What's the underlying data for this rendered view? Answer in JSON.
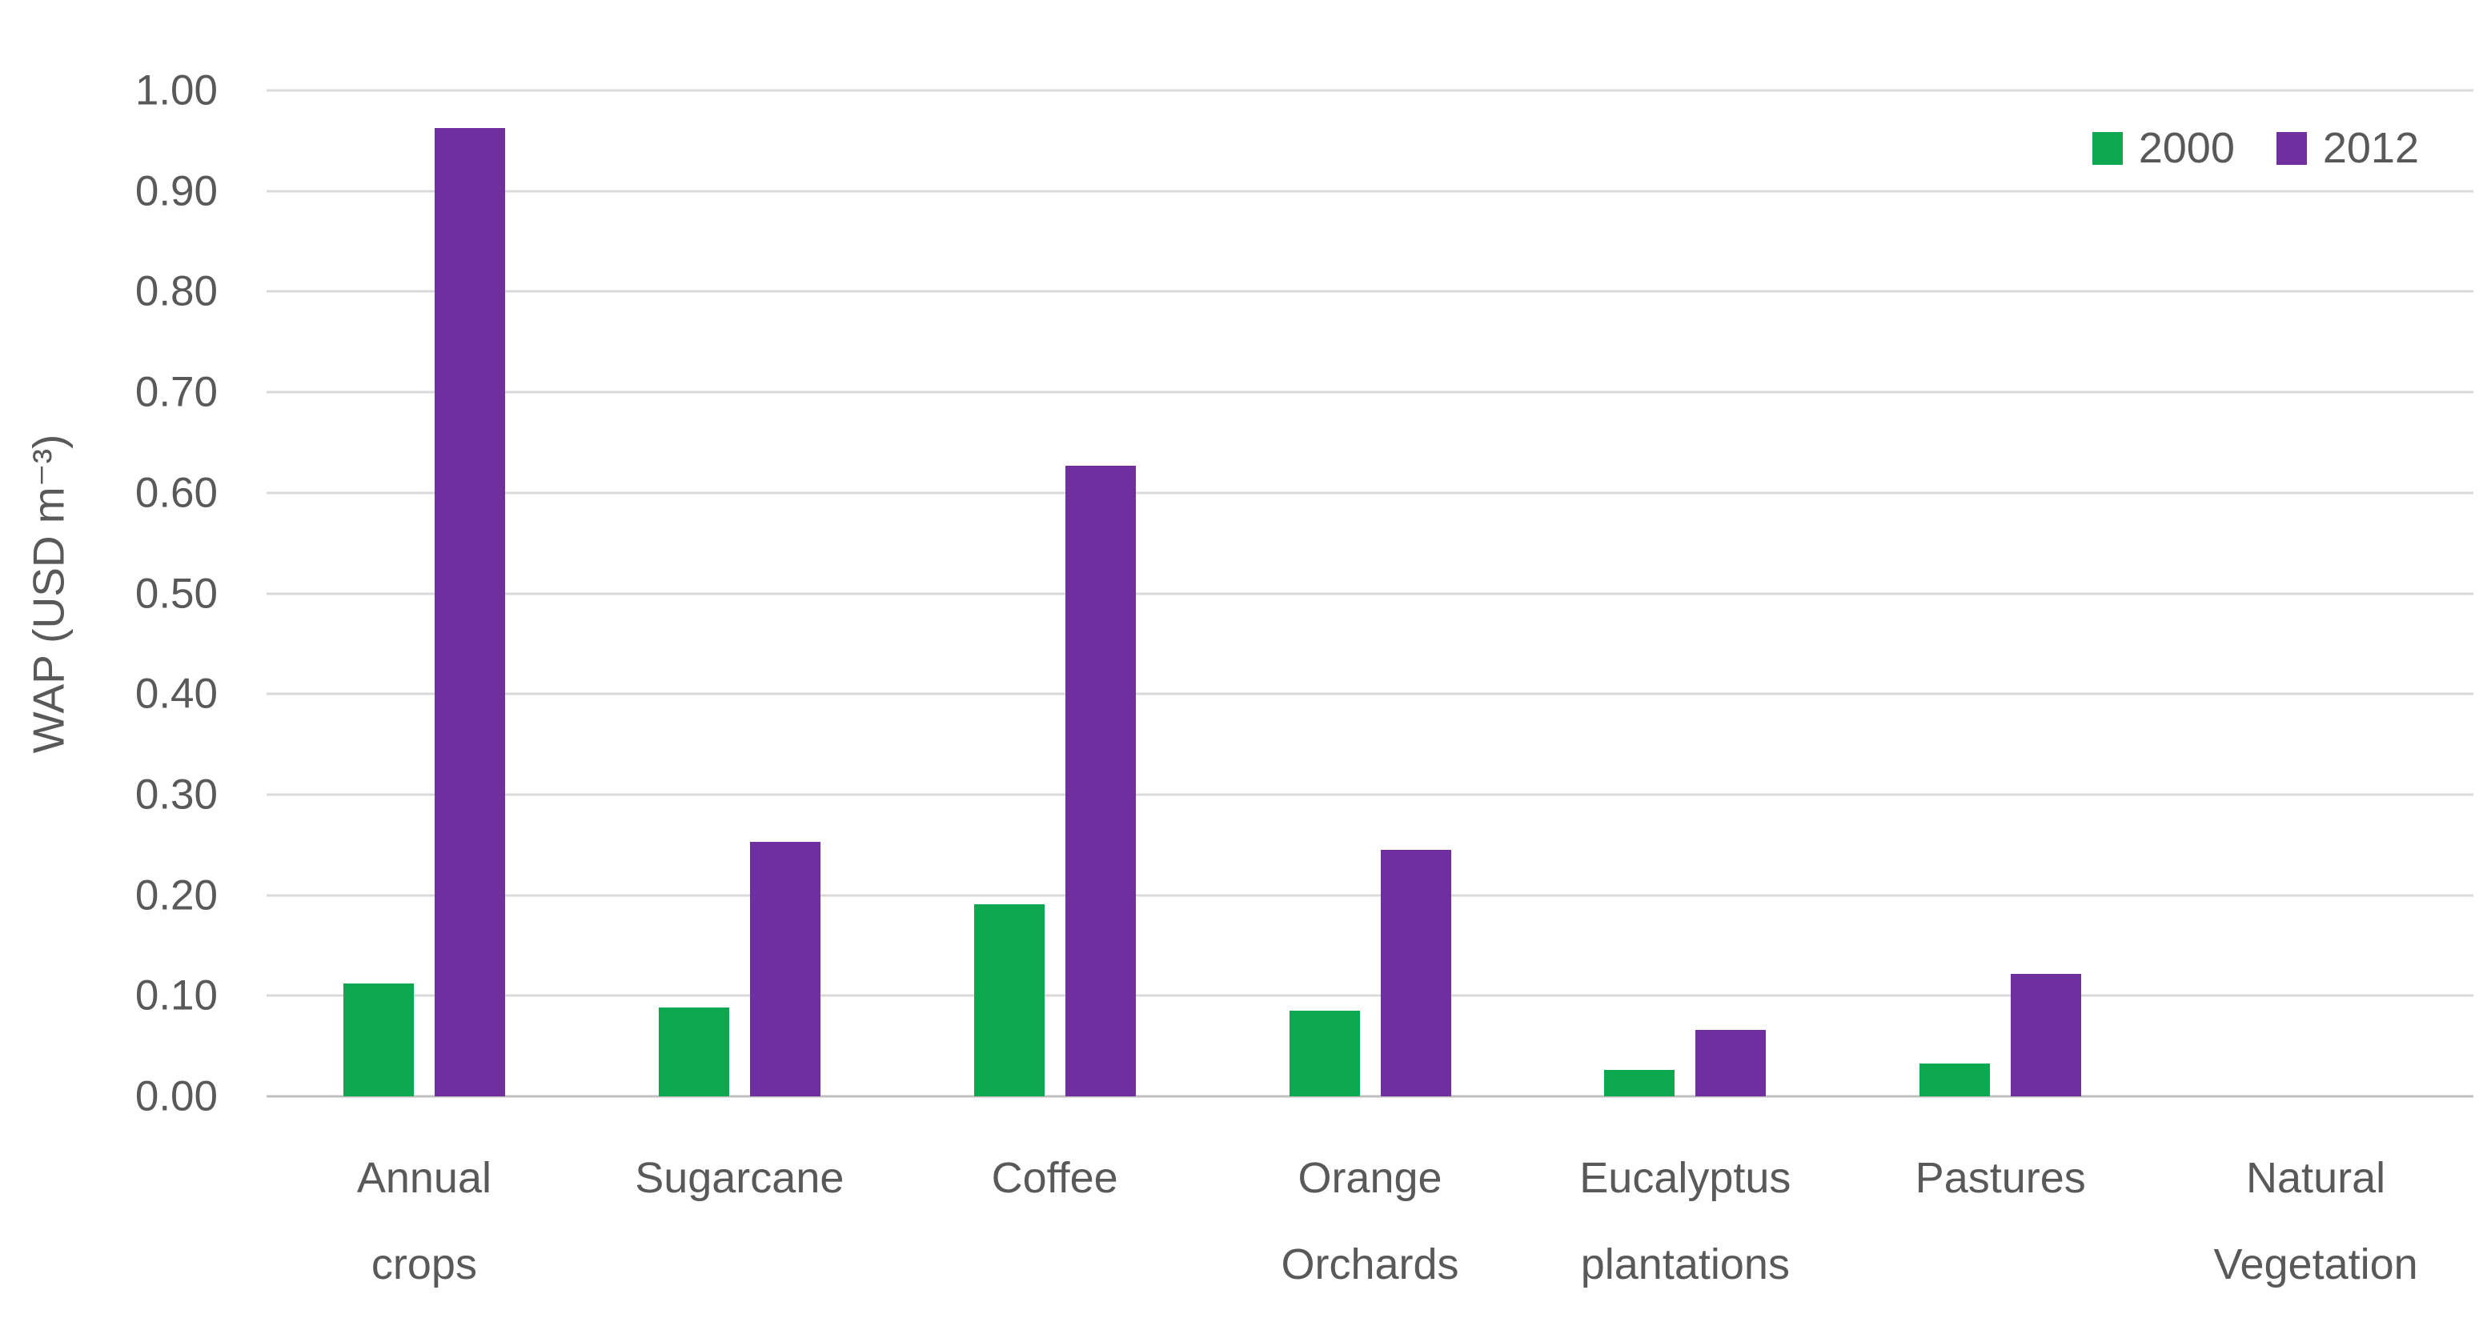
{
  "chart_data": {
    "type": "bar",
    "title": "",
    "xlabel": "",
    "ylabel": "WAP (USD m⁻³)",
    "ylim": [
      0,
      1.0
    ],
    "ytick_step": 0.1,
    "yticks": [
      "1.00",
      "0.90",
      "0.80",
      "0.70",
      "0.60",
      "0.50",
      "0.40",
      "0.30",
      "0.20",
      "0.10",
      "0.00"
    ],
    "grid": "horizontal",
    "legend_position": "top-right",
    "categories": [
      "Annual crops",
      "Sugarcane",
      "Coffee",
      "Orange Orchards",
      "Eucalyptus plantations",
      "Pastures",
      "Natural Vegetation"
    ],
    "series": [
      {
        "name": "2000",
        "color": "#0da750",
        "values": [
          0.112,
          0.088,
          0.191,
          0.085,
          0.026,
          0.033,
          0.0
        ]
      },
      {
        "name": "2012",
        "color": "#6f2f9f",
        "values": [
          0.963,
          0.253,
          0.627,
          0.245,
          0.066,
          0.122,
          0.0
        ]
      }
    ]
  },
  "colors": {
    "text": "#595959",
    "gridline": "#d9d9d9",
    "axis_line": "#bfbfbf",
    "background": "#ffffff"
  }
}
